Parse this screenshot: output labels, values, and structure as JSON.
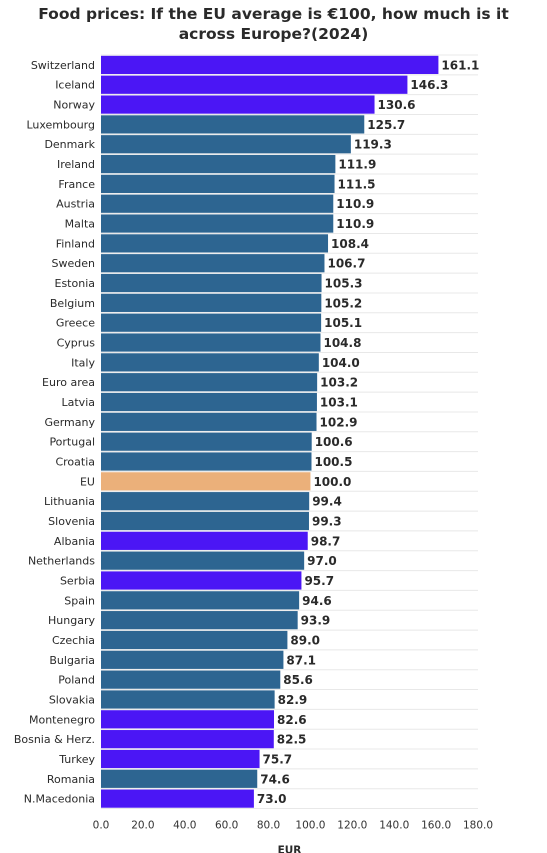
{
  "chart_data": {
    "type": "bar",
    "orientation": "horizontal",
    "title_line1": "Food prices: If the EU average is €100, how much is it",
    "title_line2": "across Europe?(2024)",
    "xlabel": "EUR",
    "xlim": [
      0,
      180
    ],
    "xticks": [
      "0.0",
      "20.0",
      "40.0",
      "60.0",
      "80.0",
      "100.0",
      "120.0",
      "140.0",
      "160.0",
      "180.0"
    ],
    "grid": true,
    "colors": {
      "eu_member": "#2d6591",
      "non_eu": "#4b16f5",
      "eu_average": "#ebb07a"
    },
    "bars": [
      {
        "category": "Switzerland",
        "value": 161.1,
        "label": "161.1",
        "group": "non_eu"
      },
      {
        "category": "Iceland",
        "value": 146.3,
        "label": "146.3",
        "group": "non_eu"
      },
      {
        "category": "Norway",
        "value": 130.6,
        "label": "130.6",
        "group": "non_eu"
      },
      {
        "category": "Luxembourg",
        "value": 125.7,
        "label": "125.7",
        "group": "eu_member"
      },
      {
        "category": "Denmark",
        "value": 119.3,
        "label": "119.3",
        "group": "eu_member"
      },
      {
        "category": "Ireland",
        "value": 111.9,
        "label": "111.9",
        "group": "eu_member"
      },
      {
        "category": "France",
        "value": 111.5,
        "label": "111.5",
        "group": "eu_member"
      },
      {
        "category": "Austria",
        "value": 110.9,
        "label": "110.9",
        "group": "eu_member"
      },
      {
        "category": "Malta",
        "value": 110.9,
        "label": "110.9",
        "group": "eu_member"
      },
      {
        "category": "Finland",
        "value": 108.4,
        "label": "108.4",
        "group": "eu_member"
      },
      {
        "category": "Sweden",
        "value": 106.7,
        "label": "106.7",
        "group": "eu_member"
      },
      {
        "category": "Estonia",
        "value": 105.3,
        "label": "105.3",
        "group": "eu_member"
      },
      {
        "category": "Belgium",
        "value": 105.2,
        "label": "105.2",
        "group": "eu_member"
      },
      {
        "category": "Greece",
        "value": 105.1,
        "label": "105.1",
        "group": "eu_member"
      },
      {
        "category": "Cyprus",
        "value": 104.8,
        "label": "104.8",
        "group": "eu_member"
      },
      {
        "category": "Italy",
        "value": 104.0,
        "label": "104.0",
        "group": "eu_member"
      },
      {
        "category": "Euro area",
        "value": 103.2,
        "label": "103.2",
        "group": "eu_member"
      },
      {
        "category": "Latvia",
        "value": 103.1,
        "label": "103.1",
        "group": "eu_member"
      },
      {
        "category": "Germany",
        "value": 102.9,
        "label": "102.9",
        "group": "eu_member"
      },
      {
        "category": "Portugal",
        "value": 100.6,
        "label": "100.6",
        "group": "eu_member"
      },
      {
        "category": "Croatia",
        "value": 100.5,
        "label": "100.5",
        "group": "eu_member"
      },
      {
        "category": "EU",
        "value": 100.0,
        "label": "100.0",
        "group": "eu_average"
      },
      {
        "category": "Lithuania",
        "value": 99.4,
        "label": "99.4",
        "group": "eu_member"
      },
      {
        "category": "Slovenia",
        "value": 99.3,
        "label": "99.3",
        "group": "eu_member"
      },
      {
        "category": "Albania",
        "value": 98.7,
        "label": "98.7",
        "group": "non_eu"
      },
      {
        "category": "Netherlands",
        "value": 97.0,
        "label": "97.0",
        "group": "eu_member"
      },
      {
        "category": "Serbia",
        "value": 95.7,
        "label": "95.7",
        "group": "non_eu"
      },
      {
        "category": "Spain",
        "value": 94.6,
        "label": "94.6",
        "group": "eu_member"
      },
      {
        "category": "Hungary",
        "value": 93.9,
        "label": "93.9",
        "group": "eu_member"
      },
      {
        "category": "Czechia",
        "value": 89.0,
        "label": "89.0",
        "group": "eu_member"
      },
      {
        "category": "Bulgaria",
        "value": 87.1,
        "label": "87.1",
        "group": "eu_member"
      },
      {
        "category": "Poland",
        "value": 85.6,
        "label": "85.6",
        "group": "eu_member"
      },
      {
        "category": "Slovakia",
        "value": 82.9,
        "label": "82.9",
        "group": "eu_member"
      },
      {
        "category": "Montenegro",
        "value": 82.6,
        "label": "82.6",
        "group": "non_eu"
      },
      {
        "category": "Bosnia & Herz.",
        "value": 82.5,
        "label": "82.5",
        "group": "non_eu"
      },
      {
        "category": "Turkey",
        "value": 75.7,
        "label": "75.7",
        "group": "non_eu"
      },
      {
        "category": "Romania",
        "value": 74.6,
        "label": "74.6",
        "group": "eu_member"
      },
      {
        "category": "N.Macedonia",
        "value": 73.0,
        "label": "73.0",
        "group": "non_eu"
      }
    ]
  }
}
